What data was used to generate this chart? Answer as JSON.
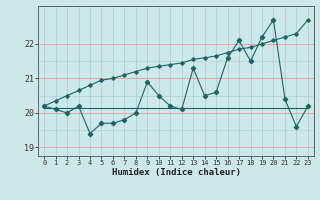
{
  "xlabel": "Humidex (Indice chaleur)",
  "bg_color": "#cce8e8",
  "grid_color_v": "#aacccc",
  "grid_color_h": "#ee9999",
  "line_color": "#1a6666",
  "x_values": [
    0,
    1,
    2,
    3,
    4,
    5,
    6,
    7,
    8,
    9,
    10,
    11,
    12,
    13,
    14,
    15,
    16,
    17,
    18,
    19,
    20,
    21,
    22,
    23
  ],
  "y_jagged": [
    20.2,
    20.1,
    20.0,
    20.2,
    19.4,
    19.7,
    19.7,
    19.8,
    20.0,
    20.9,
    20.5,
    20.2,
    20.1,
    21.3,
    20.5,
    20.6,
    21.6,
    22.1,
    21.5,
    22.2,
    22.7,
    20.4,
    19.6,
    20.2
  ],
  "y_smooth": [
    20.2,
    20.35,
    20.5,
    20.65,
    20.8,
    20.95,
    21.0,
    21.1,
    21.2,
    21.3,
    21.35,
    21.4,
    21.45,
    21.55,
    21.6,
    21.65,
    21.75,
    21.85,
    21.9,
    22.0,
    22.1,
    22.2,
    22.3,
    22.7
  ],
  "y_flat": [
    20.15,
    20.15,
    20.15,
    20.15,
    20.15,
    20.15,
    20.15,
    20.15,
    20.15,
    20.15,
    20.15,
    20.15,
    20.15,
    20.15,
    20.15,
    20.15,
    20.15,
    20.15,
    20.15,
    20.15,
    20.15,
    20.15,
    20.15,
    20.15
  ],
  "ylim": [
    18.75,
    23.1
  ],
  "yticks": [
    19,
    20,
    21,
    22
  ],
  "xlim": [
    -0.5,
    23.5
  ],
  "xticks": [
    0,
    1,
    2,
    3,
    4,
    5,
    6,
    7,
    8,
    9,
    10,
    11,
    12,
    13,
    14,
    15,
    16,
    17,
    18,
    19,
    20,
    21,
    22,
    23
  ]
}
